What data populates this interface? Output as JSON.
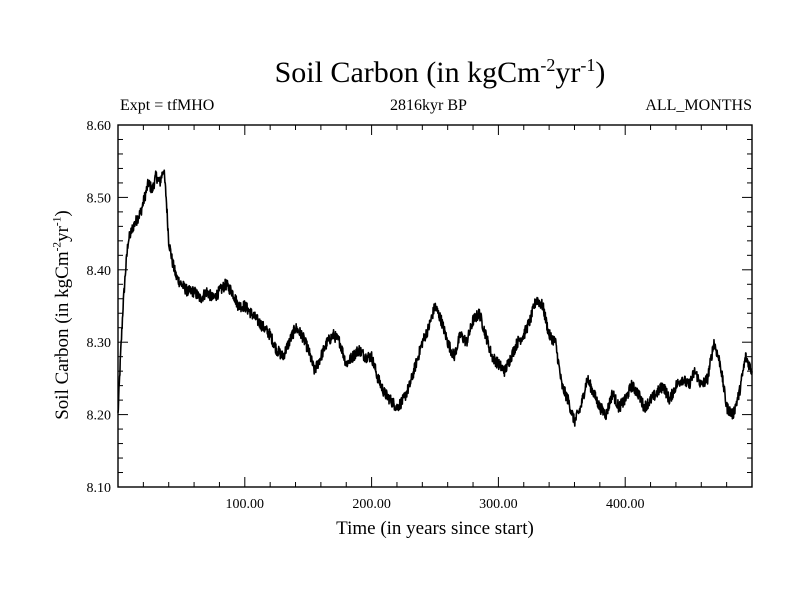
{
  "chart_data": {
    "type": "line",
    "title": "Soil Carbon (in kgCm",
    "title_sup1": "-2",
    "title_mid": "yr",
    "title_sup2": "-1",
    "title_end": ")",
    "subtitle_left": "Expt = tfMHO",
    "subtitle_center": "2816kyr BP",
    "subtitle_right": "ALL_MONTHS",
    "xlabel": "Time (in years since start)",
    "ylabel": "Soil Carbon (in kgCm",
    "ylabel_sup1": "-2",
    "ylabel_mid": "yr",
    "ylabel_sup2": "-1",
    "ylabel_end": ")",
    "xlim": [
      0,
      500
    ],
    "ylim": [
      8.1,
      8.6
    ],
    "xticks": [
      100,
      200,
      300,
      400
    ],
    "xtick_labels": [
      "100.00",
      "200.00",
      "300.00",
      "400.00"
    ],
    "yticks": [
      8.1,
      8.2,
      8.3,
      8.4,
      8.5,
      8.6
    ],
    "ytick_labels": [
      "8.10",
      "8.20",
      "8.30",
      "8.40",
      "8.50",
      "8.60"
    ],
    "line_color": "#000000",
    "series": [
      {
        "name": "Soil Carbon",
        "x": [
          0,
          2,
          4,
          6,
          8,
          10,
          12,
          15,
          18,
          21,
          24,
          27,
          30,
          33,
          36,
          38,
          40,
          43,
          46,
          50,
          55,
          60,
          65,
          70,
          75,
          80,
          85,
          90,
          95,
          100,
          105,
          110,
          115,
          120,
          125,
          130,
          135,
          140,
          145,
          150,
          155,
          160,
          165,
          170,
          175,
          180,
          185,
          190,
          195,
          200,
          205,
          210,
          215,
          220,
          225,
          230,
          235,
          240,
          245,
          250,
          255,
          260,
          265,
          270,
          275,
          280,
          285,
          290,
          295,
          300,
          305,
          310,
          315,
          320,
          325,
          330,
          335,
          340,
          345,
          350,
          355,
          360,
          365,
          370,
          375,
          380,
          385,
          390,
          395,
          400,
          405,
          410,
          415,
          420,
          425,
          430,
          435,
          440,
          445,
          450,
          455,
          460,
          465,
          470,
          475,
          480,
          485,
          490,
          495,
          500
        ],
        "values": [
          8.2,
          8.28,
          8.35,
          8.4,
          8.44,
          8.45,
          8.46,
          8.47,
          8.48,
          8.5,
          8.52,
          8.51,
          8.53,
          8.52,
          8.54,
          8.5,
          8.44,
          8.41,
          8.39,
          8.38,
          8.37,
          8.37,
          8.36,
          8.37,
          8.36,
          8.37,
          8.38,
          8.37,
          8.35,
          8.35,
          8.34,
          8.33,
          8.32,
          8.31,
          8.29,
          8.28,
          8.3,
          8.32,
          8.31,
          8.29,
          8.26,
          8.28,
          8.3,
          8.31,
          8.3,
          8.27,
          8.28,
          8.29,
          8.28,
          8.28,
          8.25,
          8.23,
          8.22,
          8.21,
          8.22,
          8.24,
          8.27,
          8.3,
          8.32,
          8.35,
          8.33,
          8.3,
          8.28,
          8.31,
          8.3,
          8.33,
          8.34,
          8.31,
          8.28,
          8.27,
          8.26,
          8.28,
          8.3,
          8.31,
          8.33,
          8.36,
          8.35,
          8.31,
          8.3,
          8.24,
          8.22,
          8.19,
          8.21,
          8.25,
          8.23,
          8.21,
          8.2,
          8.23,
          8.21,
          8.22,
          8.24,
          8.23,
          8.21,
          8.22,
          8.23,
          8.24,
          8.22,
          8.24,
          8.25,
          8.24,
          8.26,
          8.24,
          8.25,
          8.3,
          8.27,
          8.21,
          8.2,
          8.23,
          8.28,
          8.26
        ]
      }
    ]
  }
}
